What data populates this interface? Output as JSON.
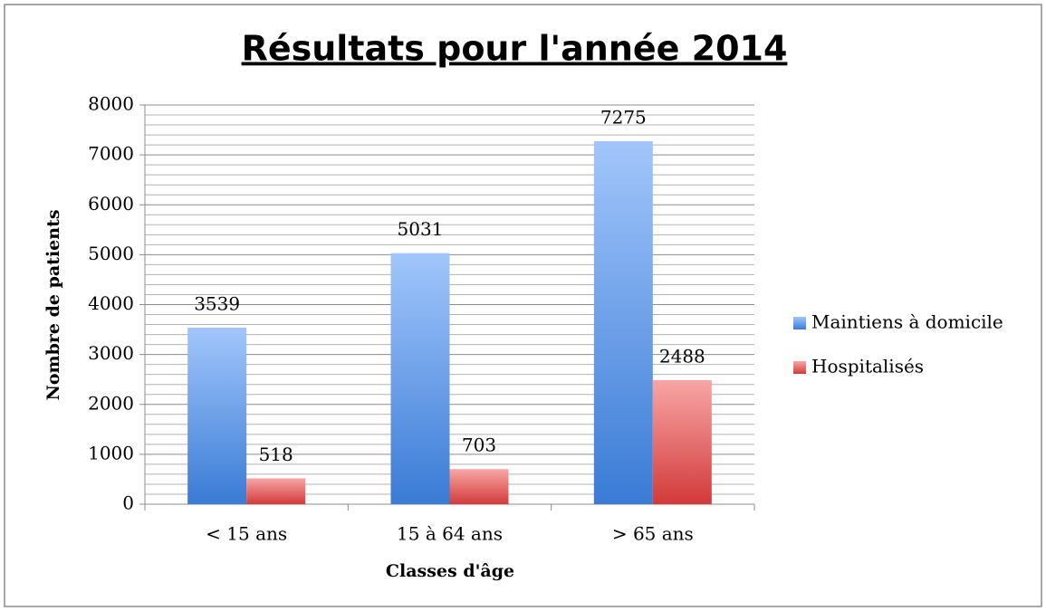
{
  "chart_data": {
    "type": "bar",
    "title": "Résultats pour l'année 2014",
    "xlabel": "Classes d'âge",
    "ylabel": "Nombre de patients",
    "categories": [
      "< 15 ans",
      "15 à 64 ans",
      "> 65 ans"
    ],
    "series": [
      {
        "name": "Maintiens à domicile",
        "color": "#3a7bd5",
        "color_top": "#a2c6fb",
        "values": [
          3539,
          5031,
          7275
        ]
      },
      {
        "name": "Hospitalisés",
        "color": "#d33a3a",
        "color_top": "#f8a6a6",
        "values": [
          518,
          703,
          2488
        ]
      }
    ],
    "ylim": [
      0,
      8000
    ],
    "yticks": [
      0,
      1000,
      2000,
      3000,
      4000,
      5000,
      6000,
      7000,
      8000
    ],
    "yminorticks": [
      200,
      400,
      600,
      800,
      1200,
      1400,
      1600,
      1800,
      2200,
      2400,
      2600,
      2800,
      3200,
      3400,
      3600,
      3800,
      4200,
      4400,
      4600,
      4800,
      5200,
      5400,
      5600,
      5800,
      6200,
      6400,
      6600,
      6800,
      7200,
      7400,
      7600,
      7800
    ],
    "grid": true,
    "legend": "right"
  }
}
